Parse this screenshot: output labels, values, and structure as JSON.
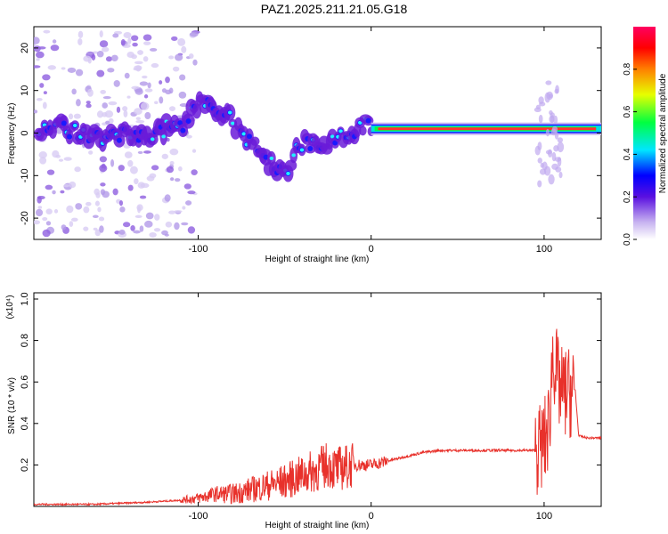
{
  "title": "PAZ1.2025.211.21.05.G18",
  "chart_data": [
    {
      "type": "heatmap",
      "xlabel": "Height of straight line (km)",
      "ylabel": "Frequency (Hz)",
      "xlim": [
        -195,
        133
      ],
      "ylim": [
        -25,
        25
      ],
      "xticks": [
        -100,
        0,
        100
      ],
      "yticks": [
        -20,
        -10,
        0,
        10,
        20
      ],
      "colorbar": {
        "label": "Normalized spectral amplitude",
        "range": [
          0,
          1
        ],
        "ticks": [
          "0.0",
          "0.2",
          "0.4",
          "0.6",
          "0.8"
        ]
      },
      "ridge": [
        {
          "x": -175,
          "f": 0
        },
        {
          "x": -150,
          "f": -1
        },
        {
          "x": -125,
          "f": 0
        },
        {
          "x": -110,
          "f": 2
        },
        {
          "x": -100,
          "f": 7
        },
        {
          "x": -90,
          "f": 6
        },
        {
          "x": -80,
          "f": 3
        },
        {
          "x": -70,
          "f": -2
        },
        {
          "x": -58,
          "f": -7
        },
        {
          "x": -50,
          "f": -10
        },
        {
          "x": -40,
          "f": -2
        },
        {
          "x": -30,
          "f": -3
        },
        {
          "x": -15,
          "f": 0
        },
        {
          "x": 0,
          "f": 2
        },
        {
          "x": 40,
          "f": 1
        },
        {
          "x": 80,
          "f": 1
        },
        {
          "x": 105,
          "f": 1
        },
        {
          "x": 133,
          "f": 1
        }
      ]
    },
    {
      "type": "line",
      "xlabel": "Height of straight line (km)",
      "ylabel": "SNR (10 * v/v)",
      "scale_note": "(x10⁴)",
      "xlim": [
        -195,
        133
      ],
      "ylim": [
        0,
        1.03
      ],
      "xticks": [
        -100,
        0,
        100
      ],
      "yticks": [
        "0.2",
        "0.4",
        "0.6",
        "0.8",
        "1.0"
      ],
      "color": "#e8312b",
      "series": [
        {
          "x": [
            -195,
            -160,
            -130,
            -110,
            -100,
            -90,
            -80,
            -70,
            -60,
            -50,
            -40,
            -30,
            -25,
            -20,
            -10,
            0,
            10,
            20,
            30,
            40,
            50,
            60,
            70,
            80,
            90,
            95,
            100,
            103,
            105,
            108,
            110,
            115,
            118,
            120,
            125,
            133
          ],
          "y": [
            0.01,
            0.01,
            0.02,
            0.03,
            0.04,
            0.06,
            0.06,
            0.08,
            0.1,
            0.12,
            0.15,
            0.18,
            0.2,
            0.18,
            0.2,
            0.2,
            0.22,
            0.24,
            0.26,
            0.27,
            0.27,
            0.27,
            0.27,
            0.27,
            0.27,
            0.27,
            0.3,
            0.4,
            0.75,
            0.6,
            0.55,
            0.55,
            0.56,
            0.34,
            0.33,
            0.33
          ]
        }
      ]
    }
  ]
}
